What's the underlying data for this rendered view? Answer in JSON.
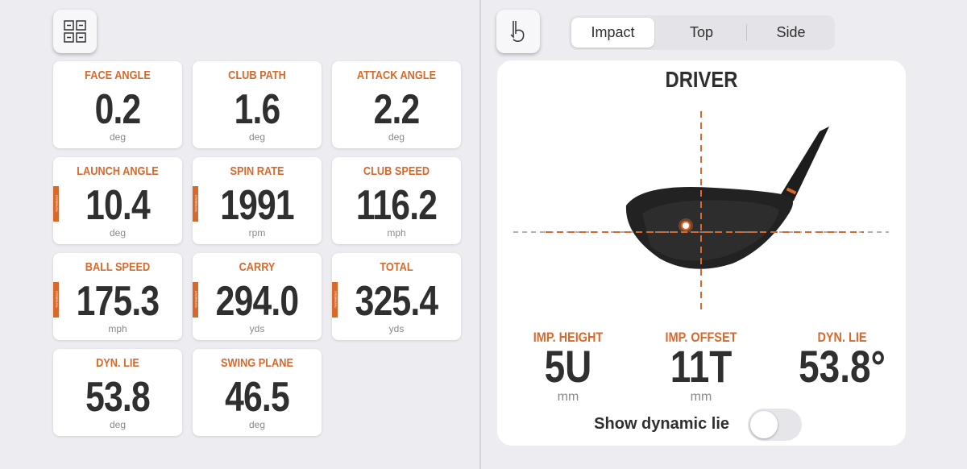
{
  "metrics": [
    {
      "label": "FACE ANGLE",
      "value": "0.2",
      "unit": "deg"
    },
    {
      "label": "CLUB PATH",
      "value": "1.6",
      "unit": "deg"
    },
    {
      "label": "ATTACK ANGLE",
      "value": "2.2",
      "unit": "deg"
    },
    {
      "label": "LAUNCH ANGLE",
      "value": "10.4",
      "unit": "deg",
      "tag": "Normalized"
    },
    {
      "label": "SPIN RATE",
      "value": "1991",
      "unit": "rpm",
      "tag": "Normalized"
    },
    {
      "label": "CLUB SPEED",
      "value": "116.2",
      "unit": "mph"
    },
    {
      "label": "BALL SPEED",
      "value": "175.3",
      "unit": "mph",
      "tag": "Normalized"
    },
    {
      "label": "CARRY",
      "value": "294.0",
      "unit": "yds",
      "tag": "Normalized"
    },
    {
      "label": "TOTAL",
      "value": "325.4",
      "unit": "yds",
      "tag": "Normalized"
    },
    {
      "label": "DYN. LIE",
      "value": "53.8",
      "unit": "deg"
    },
    {
      "label": "SWING PLANE",
      "value": "46.5",
      "unit": "deg"
    }
  ],
  "tabs": [
    "Impact",
    "Top",
    "Side"
  ],
  "impact": {
    "title": "DRIVER",
    "stats": [
      {
        "label": "IMP. HEIGHT",
        "value": "5U",
        "unit": "mm"
      },
      {
        "label": "IMP. OFFSET",
        "value": "11T",
        "unit": "mm"
      },
      {
        "label": "DYN. LIE",
        "value": "53.8°"
      }
    ],
    "toggle_label": "Show dynamic lie"
  }
}
